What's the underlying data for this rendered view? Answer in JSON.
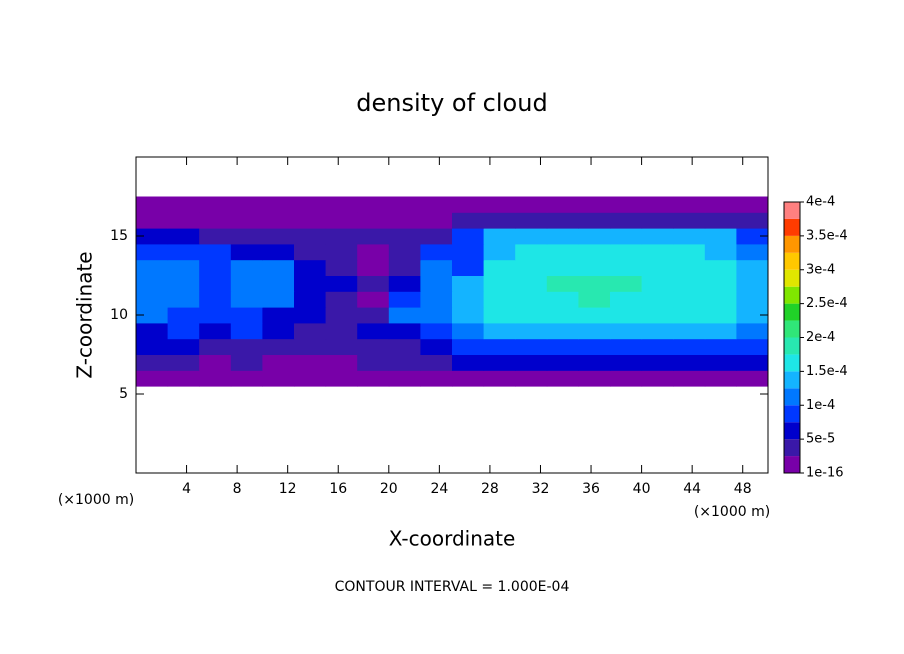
{
  "chart_data": {
    "type": "contour",
    "title": "density of cloud",
    "x_label": "X-coordinate",
    "y_label": "Z-coordinate",
    "x_unit": "(×1000 m)",
    "y_unit": "(×1000 m)",
    "footer": "CONTOUR INTERVAL = 1.000E-04",
    "xlim": [
      0,
      50
    ],
    "ylim": [
      0,
      20
    ],
    "xticks": [
      4,
      8,
      12,
      16,
      20,
      24,
      28,
      32,
      36,
      40,
      44,
      48
    ],
    "yticks": [
      5,
      10,
      15
    ],
    "x": [
      1.25,
      3.75,
      6.25,
      8.75,
      11.25,
      13.75,
      16.25,
      18.75,
      21.25,
      23.75,
      26.25,
      28.75,
      31.25,
      33.75,
      36.25,
      38.75,
      41.25,
      43.75,
      46.25,
      48.75
    ],
    "y": [
      6,
      7,
      8,
      9,
      10,
      11,
      12,
      13,
      14,
      15,
      16,
      17
    ],
    "z": [
      [
        1e-05,
        1e-05,
        1e-05,
        1e-05,
        1e-05,
        1e-05,
        1e-05,
        1e-05,
        1e-05,
        1e-05,
        1e-05,
        1e-05,
        1e-05,
        1e-05,
        1e-05,
        1e-05,
        1e-05,
        1e-05,
        1e-05,
        1e-05
      ],
      [
        3e-05,
        3e-05,
        2e-05,
        3e-05,
        2e-05,
        2e-05,
        2e-05,
        3e-05,
        3e-05,
        4e-05,
        5e-05,
        5e-05,
        5e-05,
        5e-05,
        5e-05,
        5e-05,
        5e-05,
        5e-05,
        5e-05,
        5e-05
      ],
      [
        5e-05,
        6e-05,
        4e-05,
        4e-05,
        3e-05,
        4e-05,
        3e-05,
        4e-05,
        4e-05,
        6e-05,
        8e-05,
        9e-05,
        9e-05,
        9e-05,
        9e-05,
        9e-05,
        9e-05,
        9e-05,
        8e-05,
        8e-05
      ],
      [
        7e-05,
        8e-05,
        6e-05,
        8e-05,
        5e-05,
        4e-05,
        3e-05,
        7e-05,
        6e-05,
        9e-05,
        0.00012,
        0.000135,
        0.00014,
        0.00014,
        0.00014,
        0.00014,
        0.00014,
        0.00014,
        0.00013,
        0.00011
      ],
      [
        0.00011,
        8e-05,
        8e-05,
        9e-05,
        7e-05,
        5e-05,
        4e-05,
        3e-05,
        0.0001,
        0.000105,
        0.00013,
        0.000155,
        0.00016,
        0.00016,
        0.00016,
        0.00016,
        0.00016,
        0.00016,
        0.00015,
        0.00013
      ],
      [
        0.00012,
        0.00011,
        9e-05,
        0.000115,
        0.00011,
        6e-05,
        4e-05,
        2e-05,
        8e-05,
        0.00011,
        0.00013,
        0.00016,
        0.00017,
        0.00017,
        0.000175,
        0.00017,
        0.00017,
        0.00016,
        0.000155,
        0.00014
      ],
      [
        0.00012,
        0.00011,
        9e-05,
        0.00012,
        0.00012,
        7e-05,
        5e-05,
        3e-05,
        5e-05,
        0.00012,
        0.00013,
        0.00016,
        0.00017,
        0.000175,
        0.000175,
        0.000175,
        0.00017,
        0.000165,
        0.000155,
        0.00014
      ],
      [
        0.00011,
        0.0001,
        9e-05,
        0.00011,
        0.00011,
        6e-05,
        4e-05,
        2e-05,
        3e-05,
        0.00011,
        8e-05,
        0.00015,
        0.000165,
        0.00017,
        0.00017,
        0.00017,
        0.000165,
        0.00016,
        0.00015,
        0.00013
      ],
      [
        9e-05,
        8e-05,
        9e-05,
        7e-05,
        5e-05,
        4e-05,
        3e-05,
        2e-05,
        3e-05,
        8e-05,
        9e-05,
        0.00014,
        0.00016,
        0.00016,
        0.00016,
        0.00016,
        0.00016,
        0.00015,
        0.00014,
        0.00011
      ],
      [
        6e-05,
        6e-05,
        4e-05,
        4e-05,
        4e-05,
        3e-05,
        3e-05,
        3e-05,
        4e-05,
        4e-05,
        8e-05,
        0.00013,
        0.00013,
        0.00013,
        0.00013,
        0.00013,
        0.00013,
        0.00013,
        0.00013,
        9e-05
      ],
      [
        1e-05,
        1e-05,
        1e-05,
        1e-05,
        1e-05,
        1e-05,
        1e-05,
        1e-05,
        1e-05,
        1e-05,
        4e-05,
        4e-05,
        4e-05,
        4e-05,
        4e-05,
        4e-05,
        4e-05,
        4e-05,
        4e-05,
        3e-05
      ],
      [
        1e-05,
        1e-05,
        1e-05,
        1e-05,
        1e-05,
        1e-05,
        1e-05,
        1e-05,
        1e-05,
        1e-05,
        1e-05,
        1e-05,
        1e-05,
        1e-05,
        1e-05,
        1e-05,
        1e-05,
        1e-05,
        1e-05,
        1e-05
      ]
    ],
    "levels": [
      0,
      2.5e-05,
      5e-05,
      7.5e-05,
      0.0001,
      0.000125,
      0.00015,
      0.000175,
      0.0002,
      0.000225,
      0.00025,
      0.000275,
      0.0003,
      0.000325,
      0.00035,
      0.000375,
      0.0004
    ],
    "colors": [
      "#7800a8",
      "#3a18a8",
      "#0000cc",
      "#0038ff",
      "#0078ff",
      "#14b4ff",
      "#1ee6e6",
      "#28e8b0",
      "#30e678",
      "#20d228",
      "#80e600",
      "#e0e600",
      "#ffc800",
      "#ff9600",
      "#ff3c00",
      "#ff8080"
    ],
    "colorbar_ticks": [
      {
        "value": 1e-16,
        "label": "1e-16"
      },
      {
        "value": 5e-05,
        "label": "5e-5"
      },
      {
        "value": 0.0001,
        "label": "1e-4"
      },
      {
        "value": 0.00015,
        "label": "1.5e-4"
      },
      {
        "value": 0.0002,
        "label": "2e-4"
      },
      {
        "value": 0.00025,
        "label": "2.5e-4"
      },
      {
        "value": 0.0003,
        "label": "3e-4"
      },
      {
        "value": 0.00035,
        "label": "3.5e-4"
      },
      {
        "value": 0.0004,
        "label": "4e-4"
      }
    ]
  }
}
